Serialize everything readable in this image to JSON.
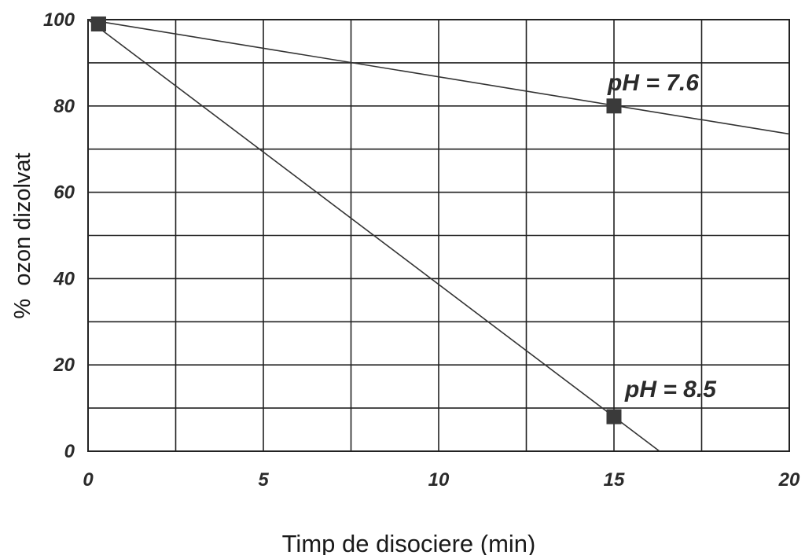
{
  "chart_data": {
    "type": "line",
    "xlabel": "Timp de disociere (min)",
    "ylabel": "%  ozon dizolvat",
    "xlim": [
      0,
      20
    ],
    "ylim": [
      0,
      100
    ],
    "x_ticks": [
      "0",
      "5",
      "10",
      "15",
      "20"
    ],
    "y_ticks": [
      "0",
      "20",
      "40",
      "60",
      "80",
      "100"
    ],
    "grid": true,
    "series": [
      {
        "name": "pH = 7.6",
        "points": [
          [
            0.3,
            99
          ],
          [
            15,
            80
          ]
        ],
        "line": [
          [
            0,
            100
          ],
          [
            20,
            73.5
          ]
        ]
      },
      {
        "name": "pH = 8.5",
        "points": [
          [
            0.3,
            99
          ],
          [
            15,
            8
          ]
        ],
        "line": [
          [
            0,
            100
          ],
          [
            16.3,
            0
          ]
        ]
      }
    ],
    "annotations": [
      {
        "text": "pH = 7.6",
        "x": 15,
        "y": 80,
        "position": "above"
      },
      {
        "text": "pH = 8.5",
        "x": 15,
        "y": 8,
        "position": "above-right"
      }
    ]
  }
}
